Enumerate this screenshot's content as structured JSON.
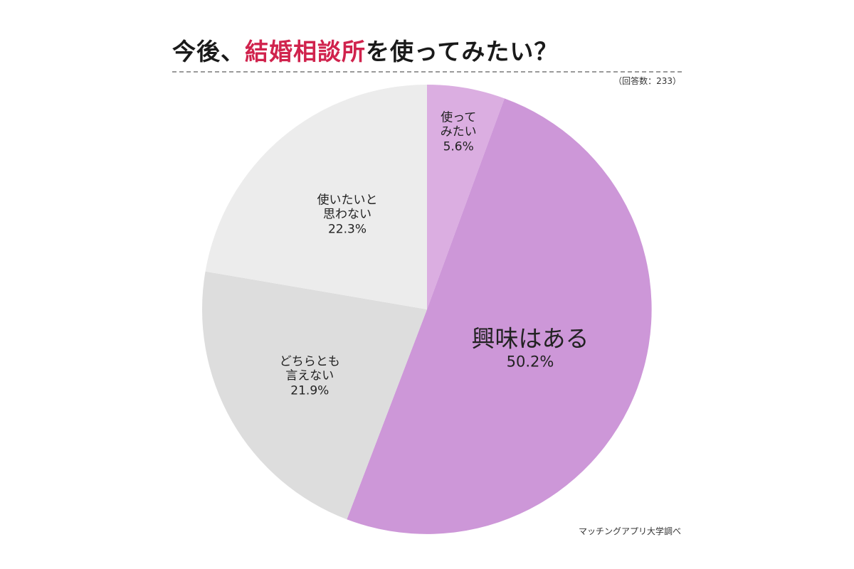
{
  "title": {
    "prefix": "今後、",
    "highlight": "結婚相談所",
    "suffix": "を使ってみたい？"
  },
  "respondents_note": "（回答数：233）",
  "source_note": "マッチングアプリ大学調べ",
  "colors": {
    "title_accent": "#d0234d",
    "divider": "#9a9a9a"
  },
  "chart_data": {
    "type": "pie",
    "title": "今後、結婚相談所を使ってみたい？",
    "start_angle_deg": 0,
    "direction": "clockwise",
    "slices": [
      {
        "label_lines": [
          "使って",
          "みたい"
        ],
        "value": 5.6,
        "value_label": "5.6%",
        "color": "#dbaee1"
      },
      {
        "label_lines": [
          "興味はある"
        ],
        "value": 50.2,
        "value_label": "50.2%",
        "color": "#cd97d8"
      },
      {
        "label_lines": [
          "どちらとも",
          "言えない"
        ],
        "value": 21.9,
        "value_label": "21.9%",
        "color": "#dddddd"
      },
      {
        "label_lines": [
          "使いたいと",
          "思わない"
        ],
        "value": 22.3,
        "value_label": "22.3%",
        "color": "#ececec"
      }
    ]
  }
}
